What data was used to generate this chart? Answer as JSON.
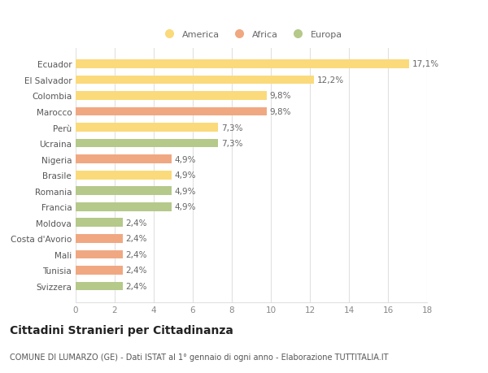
{
  "categories": [
    "Ecuador",
    "El Salvador",
    "Colombia",
    "Marocco",
    "Perù",
    "Ucraina",
    "Nigeria",
    "Brasile",
    "Romania",
    "Francia",
    "Moldova",
    "Costa d'Avorio",
    "Mali",
    "Tunisia",
    "Svizzera"
  ],
  "values": [
    17.1,
    12.2,
    9.8,
    9.8,
    7.3,
    7.3,
    4.9,
    4.9,
    4.9,
    4.9,
    2.4,
    2.4,
    2.4,
    2.4,
    2.4
  ],
  "labels": [
    "17,1%",
    "12,2%",
    "9,8%",
    "9,8%",
    "7,3%",
    "7,3%",
    "4,9%",
    "4,9%",
    "4,9%",
    "4,9%",
    "2,4%",
    "2,4%",
    "2,4%",
    "2,4%",
    "2,4%"
  ],
  "continent": [
    "America",
    "America",
    "America",
    "Africa",
    "America",
    "Europa",
    "Africa",
    "America",
    "Europa",
    "Europa",
    "Europa",
    "Africa",
    "Africa",
    "Africa",
    "Europa"
  ],
  "color_America": "#FADA7A",
  "color_Africa": "#F0A882",
  "color_Europa": "#B5C98A",
  "xlim": [
    0,
    18
  ],
  "xticks": [
    0,
    2,
    4,
    6,
    8,
    10,
    12,
    14,
    16,
    18
  ],
  "title": "Cittadini Stranieri per Cittadinanza",
  "subtitle": "COMUNE DI LUMARZO (GE) - Dati ISTAT al 1° gennaio di ogni anno - Elaborazione TUTTITALIA.IT",
  "background_color": "#ffffff",
  "grid_color": "#e0e0e0",
  "bar_height": 0.55,
  "label_fontsize": 7.5,
  "tick_fontsize": 7.5,
  "title_fontsize": 10,
  "subtitle_fontsize": 7
}
